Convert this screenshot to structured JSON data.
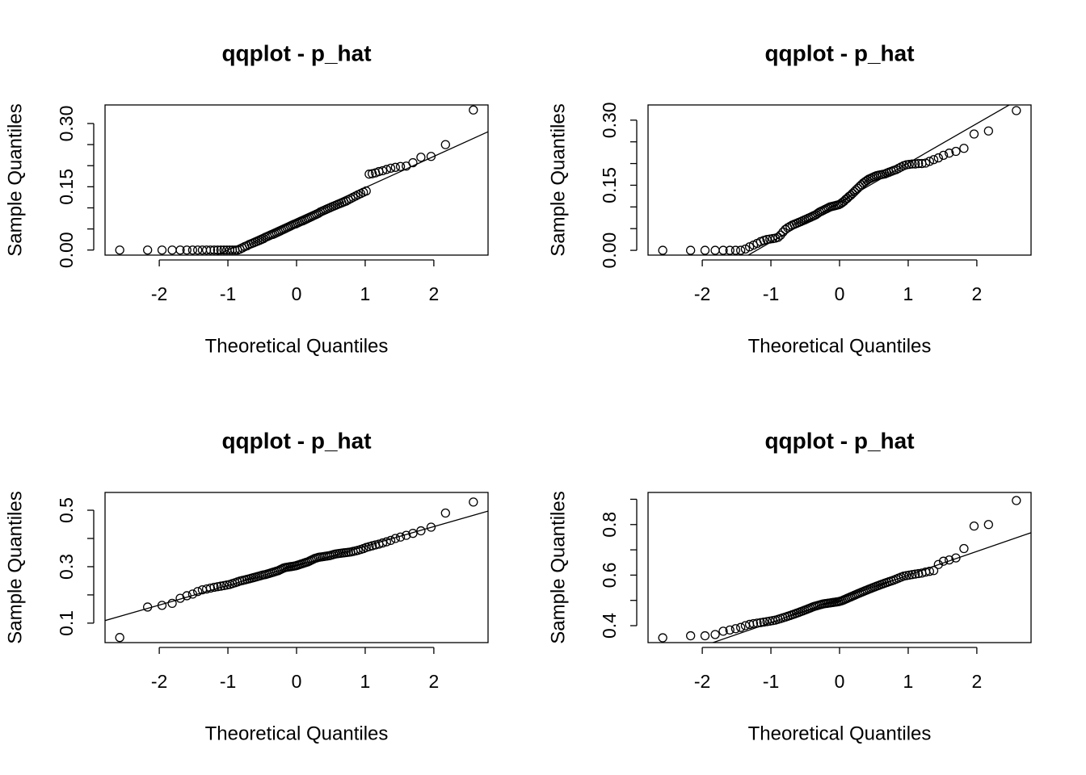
{
  "chart_data": [
    {
      "type": "scatter",
      "title": "qqplot - p_hat",
      "xlabel": "Theoretical Quantiles",
      "ylabel": "Sample Quantiles",
      "xlim": [
        -2.79,
        2.79
      ],
      "xticks": [
        -2,
        -1,
        0,
        1,
        2
      ],
      "ylim": [
        -0.012,
        0.344
      ],
      "yticks": [
        {
          "value": 0,
          "label": "0.00"
        },
        {
          "value": 0.15,
          "label": "0.15"
        },
        {
          "value": 0.3,
          "label": "0.30"
        }
      ],
      "yticks_minor": [
        0.05,
        0.1,
        0.2,
        0.25
      ],
      "qqline": {
        "intercept": 0.074,
        "slope": 0.074
      },
      "x": [
        -2.576,
        -2.17,
        -1.96,
        -1.812,
        -1.695,
        -1.598,
        -1.514,
        -1.44,
        -1.372,
        -1.311,
        -1.254,
        -1.2,
        -1.15,
        -1.103,
        -1.058,
        -1.015,
        -0.974,
        -0.935,
        -0.896,
        -0.86,
        -0.824,
        -0.789,
        -0.755,
        -0.722,
        -0.69,
        -0.659,
        -0.628,
        -0.598,
        -0.568,
        -0.539,
        -0.51,
        -0.482,
        -0.454,
        -0.426,
        -0.399,
        -0.372,
        -0.345,
        -0.319,
        -0.292,
        -0.266,
        -0.24,
        -0.215,
        -0.189,
        -0.164,
        -0.138,
        -0.113,
        -0.088,
        -0.063,
        -0.038,
        -0.013,
        0.013,
        0.038,
        0.063,
        0.088,
        0.113,
        0.138,
        0.164,
        0.189,
        0.215,
        0.24,
        0.266,
        0.292,
        0.319,
        0.345,
        0.372,
        0.399,
        0.426,
        0.454,
        0.482,
        0.51,
        0.539,
        0.568,
        0.598,
        0.628,
        0.659,
        0.69,
        0.722,
        0.755,
        0.789,
        0.824,
        0.86,
        0.896,
        0.935,
        0.974,
        1.015,
        1.058,
        1.103,
        1.15,
        1.2,
        1.254,
        1.311,
        1.372,
        1.44,
        1.514,
        1.598,
        1.695,
        1.812,
        1.96,
        2.17,
        2.576
      ],
      "y": [
        0,
        0,
        0,
        0,
        0,
        0,
        0,
        0,
        0,
        0,
        0,
        0,
        0,
        0,
        0,
        0,
        0,
        0,
        0,
        0,
        0.002,
        0.005,
        0.008,
        0.01,
        0.013,
        0.015,
        0.017,
        0.019,
        0.021,
        0.023,
        0.025,
        0.027,
        0.03,
        0.032,
        0.034,
        0.036,
        0.037,
        0.039,
        0.041,
        0.043,
        0.045,
        0.047,
        0.049,
        0.051,
        0.053,
        0.055,
        0.057,
        0.059,
        0.061,
        0.062,
        0.064,
        0.066,
        0.068,
        0.069,
        0.071,
        0.073,
        0.075,
        0.077,
        0.079,
        0.081,
        0.083,
        0.085,
        0.087,
        0.09,
        0.092,
        0.094,
        0.096,
        0.098,
        0.1,
        0.102,
        0.104,
        0.106,
        0.108,
        0.11,
        0.112,
        0.114,
        0.116,
        0.119,
        0.122,
        0.125,
        0.128,
        0.131,
        0.134,
        0.137,
        0.14,
        0.18,
        0.181,
        0.183,
        0.186,
        0.188,
        0.191,
        0.194,
        0.196,
        0.198,
        0.199,
        0.207,
        0.22,
        0.222,
        0.25,
        0.332
      ]
    },
    {
      "type": "scatter",
      "title": "qqplot - p_hat",
      "xlabel": "Theoretical Quantiles",
      "ylabel": "Sample Quantiles",
      "xlim": [
        -2.79,
        2.79
      ],
      "xticks": [
        -2,
        -1,
        0,
        1,
        2
      ],
      "ylim": [
        -0.011,
        0.335
      ],
      "yticks": [
        {
          "value": 0,
          "label": "0.00"
        },
        {
          "value": 0.15,
          "label": "0.15"
        },
        {
          "value": 0.3,
          "label": "0.30"
        }
      ],
      "yticks_minor": [
        0.05,
        0.1,
        0.2,
        0.25
      ],
      "qqline": {
        "intercept": 0.11,
        "slope": 0.091
      },
      "x": [
        -2.576,
        -2.17,
        -1.96,
        -1.812,
        -1.695,
        -1.598,
        -1.514,
        -1.44,
        -1.372,
        -1.311,
        -1.254,
        -1.2,
        -1.15,
        -1.103,
        -1.058,
        -1.015,
        -0.974,
        -0.935,
        -0.896,
        -0.86,
        -0.824,
        -0.789,
        -0.755,
        -0.722,
        -0.69,
        -0.659,
        -0.628,
        -0.598,
        -0.568,
        -0.539,
        -0.51,
        -0.482,
        -0.454,
        -0.426,
        -0.399,
        -0.372,
        -0.345,
        -0.319,
        -0.292,
        -0.266,
        -0.24,
        -0.215,
        -0.189,
        -0.164,
        -0.138,
        -0.113,
        -0.088,
        -0.063,
        -0.038,
        -0.013,
        0.013,
        0.038,
        0.063,
        0.088,
        0.113,
        0.138,
        0.164,
        0.189,
        0.215,
        0.24,
        0.266,
        0.292,
        0.319,
        0.345,
        0.372,
        0.399,
        0.426,
        0.454,
        0.482,
        0.51,
        0.539,
        0.568,
        0.598,
        0.628,
        0.659,
        0.69,
        0.722,
        0.755,
        0.789,
        0.824,
        0.86,
        0.896,
        0.935,
        0.974,
        1.015,
        1.058,
        1.103,
        1.15,
        1.2,
        1.254,
        1.311,
        1.372,
        1.44,
        1.514,
        1.598,
        1.695,
        1.812,
        1.96,
        2.17,
        2.576
      ],
      "y": [
        0,
        0,
        0,
        0,
        0,
        0,
        0,
        0,
        0.003,
        0.008,
        0.012,
        0.016,
        0.02,
        0.023,
        0.025,
        0.026,
        0.027,
        0.028,
        0.03,
        0.035,
        0.042,
        0.048,
        0.052,
        0.055,
        0.058,
        0.06,
        0.062,
        0.064,
        0.066,
        0.068,
        0.07,
        0.072,
        0.074,
        0.076,
        0.078,
        0.08,
        0.082,
        0.085,
        0.088,
        0.09,
        0.092,
        0.094,
        0.096,
        0.098,
        0.1,
        0.101,
        0.102,
        0.103,
        0.104,
        0.105,
        0.107,
        0.11,
        0.113,
        0.117,
        0.12,
        0.124,
        0.127,
        0.131,
        0.135,
        0.139,
        0.143,
        0.147,
        0.151,
        0.155,
        0.158,
        0.161,
        0.164,
        0.166,
        0.168,
        0.17,
        0.172,
        0.173,
        0.174,
        0.175,
        0.176,
        0.178,
        0.18,
        0.182,
        0.184,
        0.186,
        0.189,
        0.192,
        0.195,
        0.197,
        0.198,
        0.199,
        0.199,
        0.2,
        0.2,
        0.201,
        0.205,
        0.209,
        0.213,
        0.219,
        0.224,
        0.228,
        0.235,
        0.268,
        0.275,
        0.322
      ]
    },
    {
      "type": "scatter",
      "title": "qqplot - p_hat",
      "xlabel": "Theoretical Quantiles",
      "ylabel": "Sample Quantiles",
      "xlim": [
        -2.79,
        2.79
      ],
      "xticks": [
        -2,
        -1,
        0,
        1,
        2
      ],
      "ylim": [
        0.031,
        0.563
      ],
      "yticks": [
        0.1,
        0.3,
        0.5
      ],
      "yticks_minor": [
        0.2,
        0.4
      ],
      "qqline": {
        "intercept": 0.303,
        "slope": 0.0695
      },
      "x": [
        -2.576,
        -2.17,
        -1.96,
        -1.812,
        -1.695,
        -1.598,
        -1.514,
        -1.44,
        -1.372,
        -1.311,
        -1.254,
        -1.2,
        -1.15,
        -1.103,
        -1.058,
        -1.015,
        -0.974,
        -0.935,
        -0.896,
        -0.86,
        -0.824,
        -0.789,
        -0.755,
        -0.722,
        -0.69,
        -0.659,
        -0.628,
        -0.598,
        -0.568,
        -0.539,
        -0.51,
        -0.482,
        -0.454,
        -0.426,
        -0.399,
        -0.372,
        -0.345,
        -0.319,
        -0.292,
        -0.266,
        -0.24,
        -0.215,
        -0.189,
        -0.164,
        -0.138,
        -0.113,
        -0.088,
        -0.063,
        -0.038,
        -0.013,
        0.013,
        0.038,
        0.063,
        0.088,
        0.113,
        0.138,
        0.164,
        0.189,
        0.215,
        0.24,
        0.266,
        0.292,
        0.319,
        0.345,
        0.372,
        0.399,
        0.426,
        0.454,
        0.482,
        0.51,
        0.539,
        0.568,
        0.598,
        0.628,
        0.659,
        0.69,
        0.722,
        0.755,
        0.789,
        0.824,
        0.86,
        0.896,
        0.935,
        0.974,
        1.015,
        1.058,
        1.103,
        1.15,
        1.2,
        1.254,
        1.311,
        1.372,
        1.44,
        1.514,
        1.598,
        1.695,
        1.812,
        1.96,
        2.17,
        2.576
      ],
      "y": [
        0.049,
        0.157,
        0.163,
        0.17,
        0.188,
        0.197,
        0.203,
        0.212,
        0.218,
        0.221,
        0.224,
        0.227,
        0.229,
        0.231,
        0.233,
        0.235,
        0.237,
        0.24,
        0.243,
        0.246,
        0.249,
        0.251,
        0.253,
        0.255,
        0.257,
        0.259,
        0.261,
        0.263,
        0.265,
        0.267,
        0.269,
        0.271,
        0.272,
        0.274,
        0.276,
        0.278,
        0.28,
        0.282,
        0.284,
        0.286,
        0.289,
        0.292,
        0.295,
        0.297,
        0.298,
        0.299,
        0.3,
        0.301,
        0.302,
        0.303,
        0.305,
        0.307,
        0.309,
        0.311,
        0.313,
        0.315,
        0.317,
        0.32,
        0.323,
        0.326,
        0.329,
        0.331,
        0.333,
        0.334,
        0.335,
        0.336,
        0.337,
        0.338,
        0.339,
        0.341,
        0.343,
        0.345,
        0.346,
        0.347,
        0.348,
        0.349,
        0.35,
        0.351,
        0.352,
        0.354,
        0.356,
        0.358,
        0.361,
        0.364,
        0.368,
        0.371,
        0.374,
        0.377,
        0.38,
        0.384,
        0.388,
        0.393,
        0.4,
        0.405,
        0.411,
        0.418,
        0.427,
        0.44,
        0.49,
        0.529
      ]
    },
    {
      "type": "scatter",
      "title": "qqplot - p_hat",
      "xlabel": "Theoretical Quantiles",
      "ylabel": "Sample Quantiles",
      "xlim": [
        -2.79,
        2.79
      ],
      "xticks": [
        -2,
        -1,
        0,
        1,
        2
      ],
      "ylim": [
        0.333,
        0.927
      ],
      "yticks": [
        0.4,
        0.6,
        0.8
      ],
      "yticks_minor": [
        0.5,
        0.7,
        0.9
      ],
      "qqline": {
        "intercept": 0.506,
        "slope": 0.0938
      },
      "x": [
        -2.576,
        -2.17,
        -1.96,
        -1.812,
        -1.695,
        -1.598,
        -1.514,
        -1.44,
        -1.372,
        -1.311,
        -1.254,
        -1.2,
        -1.15,
        -1.103,
        -1.058,
        -1.015,
        -0.974,
        -0.935,
        -0.896,
        -0.86,
        -0.824,
        -0.789,
        -0.755,
        -0.722,
        -0.69,
        -0.659,
        -0.628,
        -0.598,
        -0.568,
        -0.539,
        -0.51,
        -0.482,
        -0.454,
        -0.426,
        -0.399,
        -0.372,
        -0.345,
        -0.319,
        -0.292,
        -0.266,
        -0.24,
        -0.215,
        -0.189,
        -0.164,
        -0.138,
        -0.113,
        -0.088,
        -0.063,
        -0.038,
        -0.013,
        0.013,
        0.038,
        0.063,
        0.088,
        0.113,
        0.138,
        0.164,
        0.189,
        0.215,
        0.24,
        0.266,
        0.292,
        0.319,
        0.345,
        0.372,
        0.399,
        0.426,
        0.454,
        0.482,
        0.51,
        0.539,
        0.568,
        0.598,
        0.628,
        0.659,
        0.69,
        0.722,
        0.755,
        0.789,
        0.824,
        0.86,
        0.896,
        0.935,
        0.974,
        1.015,
        1.058,
        1.103,
        1.15,
        1.2,
        1.254,
        1.311,
        1.372,
        1.44,
        1.514,
        1.598,
        1.695,
        1.812,
        1.96,
        2.17,
        2.576
      ],
      "y": [
        0.352,
        0.36,
        0.36,
        0.365,
        0.378,
        0.383,
        0.388,
        0.393,
        0.4,
        0.405,
        0.408,
        0.41,
        0.412,
        0.414,
        0.416,
        0.418,
        0.42,
        0.422,
        0.425,
        0.428,
        0.431,
        0.434,
        0.437,
        0.44,
        0.443,
        0.446,
        0.449,
        0.452,
        0.455,
        0.458,
        0.461,
        0.464,
        0.467,
        0.47,
        0.473,
        0.476,
        0.478,
        0.48,
        0.482,
        0.484,
        0.486,
        0.487,
        0.488,
        0.489,
        0.49,
        0.491,
        0.492,
        0.493,
        0.494,
        0.495,
        0.497,
        0.499,
        0.502,
        0.505,
        0.508,
        0.511,
        0.514,
        0.517,
        0.52,
        0.523,
        0.526,
        0.529,
        0.532,
        0.535,
        0.538,
        0.541,
        0.544,
        0.547,
        0.55,
        0.553,
        0.556,
        0.559,
        0.562,
        0.565,
        0.568,
        0.571,
        0.574,
        0.577,
        0.58,
        0.584,
        0.588,
        0.592,
        0.596,
        0.598,
        0.6,
        0.602,
        0.604,
        0.606,
        0.608,
        0.612,
        0.615,
        0.618,
        0.642,
        0.655,
        0.66,
        0.668,
        0.705,
        0.794,
        0.8,
        0.895
      ]
    }
  ]
}
